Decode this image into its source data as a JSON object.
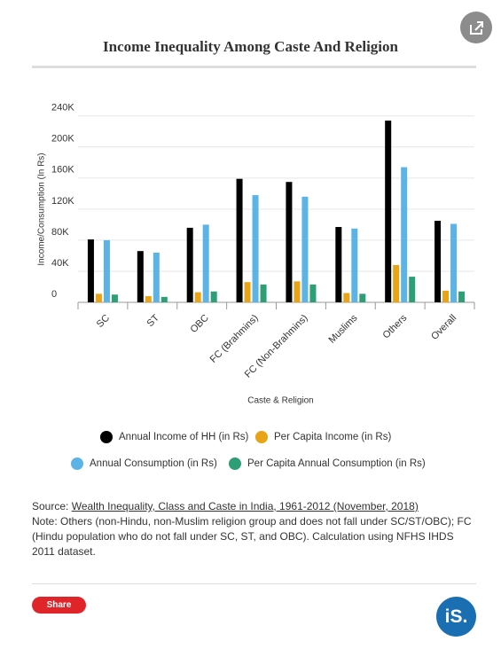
{
  "chart_data": {
    "type": "bar",
    "title": "Income Inequality Among Caste And Religion",
    "x_label": "Caste & Religion",
    "y_label": "Income/Consumption (In Rs)",
    "categories": [
      "SC",
      "ST",
      "OBC",
      "FC (Brahmins)",
      "FC (Non-Brahmins)",
      "Muslims",
      "Others",
      "Overall"
    ],
    "series": [
      {
        "name": "Annual Income of HH (in Rs)",
        "color": "#000000",
        "values": [
          81000,
          66000,
          96000,
          159000,
          155000,
          97000,
          234000,
          105000
        ]
      },
      {
        "name": "Per Capita Income (in Rs)",
        "color": "#e8a317",
        "values": [
          11000,
          8000,
          13000,
          26000,
          27000,
          12000,
          48000,
          15000
        ]
      },
      {
        "name": "Annual Consumption (in Rs)",
        "color": "#5bb4e5",
        "values": [
          80000,
          64000,
          100000,
          138000,
          136000,
          95000,
          174000,
          101000
        ]
      },
      {
        "name": "Per Capita Annual Consumption (in Rs)",
        "color": "#2e9e77",
        "values": [
          10000,
          7000,
          14000,
          23000,
          23000,
          11000,
          33000,
          14000
        ]
      }
    ],
    "ylim": [
      0,
      250000
    ],
    "yticks": [
      0,
      {
        "value": 40000,
        "label": "40K"
      },
      {
        "value": 80000,
        "label": "80K"
      },
      {
        "value": 120000,
        "label": "120K"
      },
      {
        "value": 160000,
        "label": "160K"
      },
      {
        "value": 200000,
        "label": "200K"
      },
      {
        "value": 240000,
        "label": "240K"
      }
    ],
    "grid": true
  },
  "source_label": "Source:",
  "source_link": "Wealth Inequality, Class and Caste in India, 1961-2012 (November, 2018)",
  "note": "Note: Others (non-Hindu, non-Muslim religion group and does not fall under SC/ST/OBC); FC (Hindu population who do not fall under SC, ST, and OBC). Calculation using NFHS IHDS 2011 dataset.",
  "share_label": "Share",
  "logo": "iS."
}
